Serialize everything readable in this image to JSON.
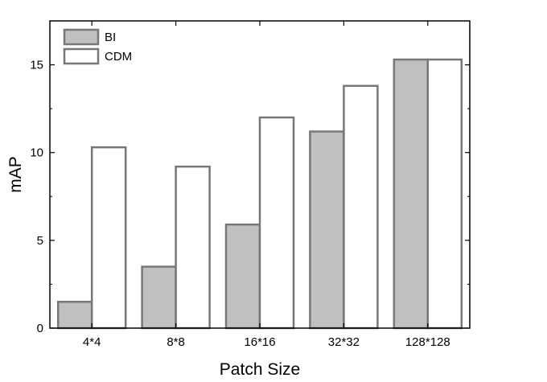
{
  "chart_data": {
    "type": "bar",
    "categories": [
      "4*4",
      "8*8",
      "16*16",
      "32*32",
      "128*128"
    ],
    "series": [
      {
        "name": "BI",
        "values": [
          1.5,
          3.5,
          5.9,
          11.2,
          15.3
        ],
        "color": "#c0c0c0"
      },
      {
        "name": "CDM",
        "values": [
          10.3,
          9.2,
          12.0,
          13.8,
          15.3
        ],
        "color": "#ffffff"
      }
    ],
    "bar_outline_color": "#777777",
    "xlabel": "Patch Size",
    "ylabel": "mAP",
    "ylim": [
      0,
      17.5
    ],
    "yticks": [
      0,
      5,
      10,
      15
    ],
    "grid": false,
    "legend_position": "top-left"
  }
}
